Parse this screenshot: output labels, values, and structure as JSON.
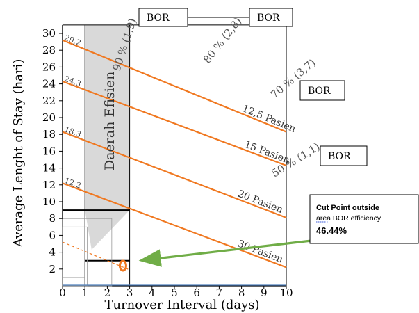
{
  "chart_data": {
    "type": "line",
    "xlabel": "Turnover Interval (days)",
    "ylabel": "Average Lenght of Stay (hari)",
    "xlim": [
      0,
      10
    ],
    "ylim": [
      0,
      31
    ],
    "x_ticks": [
      "0",
      "1",
      "2",
      "3",
      "4",
      "5",
      "6",
      "7",
      "8",
      "9",
      "10"
    ],
    "y_ticks": [
      "2",
      "4",
      "6",
      "8",
      "10",
      "12",
      "14",
      "16",
      "18",
      "20",
      "22",
      "24",
      "26",
      "28",
      "30"
    ],
    "colors": {
      "lines": "#f07820",
      "arrow": "#70ad47",
      "region": "#d9d9d9",
      "point": "#f07820"
    },
    "efficient_region": {
      "label": "Daerah Efisien",
      "x": [
        1,
        3
      ],
      "y": [
        9,
        31
      ]
    },
    "patient_lines": [
      {
        "name": "12,5 Pasien",
        "x": [
          0,
          10
        ],
        "y": [
          29.2,
          18.3
        ]
      },
      {
        "name": "15 Pasien",
        "x": [
          0,
          10
        ],
        "y": [
          24.3,
          14.3
        ]
      },
      {
        "name": "20 Pasien",
        "x": [
          0,
          10
        ],
        "y": [
          18.3,
          8.1
        ]
      },
      {
        "name": "30 Pasien",
        "x": [
          0,
          10
        ],
        "y": [
          12.2,
          2.2
        ]
      }
    ],
    "intercept_labels": [
      "29,2",
      "24,3",
      "18,3",
      "12,2"
    ],
    "bor_lines": [
      {
        "name": "90 % (1,9)",
        "x": 1.9
      },
      {
        "name": "80 % (2,8)",
        "x": 2.8
      },
      {
        "name": "70 % (3,7)",
        "x": 3.7
      },
      {
        "name": "50 % (1,1)",
        "x": 1.1
      }
    ],
    "bor_boxes": [
      "BOR",
      "BOR",
      "BOR",
      "BOR"
    ],
    "dashed_line": {
      "x": [
        0,
        3
      ],
      "y": [
        5.2,
        1.9
      ]
    },
    "cut_point": {
      "x": 2.7,
      "y": 2.4
    },
    "annotation": {
      "line1": "Cut Point outside",
      "line2": "area BOR efficiency",
      "value": "46.44%"
    }
  }
}
